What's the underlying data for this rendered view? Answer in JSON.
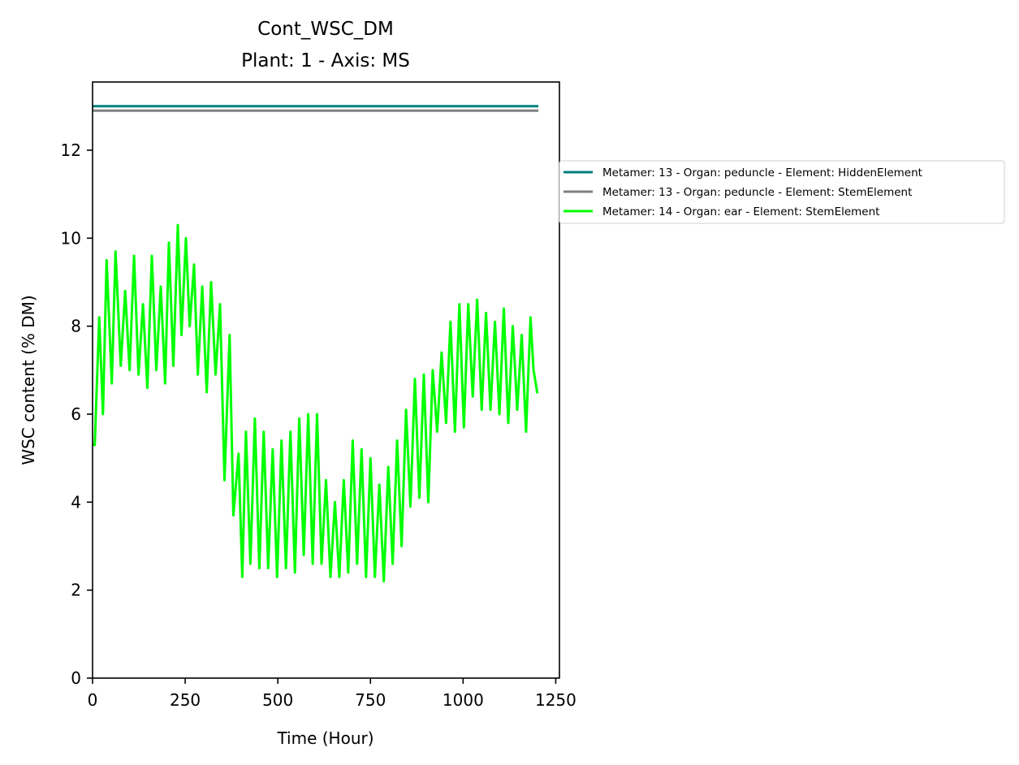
{
  "chart_data": {
    "type": "line",
    "title": "Cont_WSC_DM",
    "subtitle": "Plant: 1 - Axis: MS",
    "xlabel": "Time (Hour)",
    "ylabel": "WSC content (% DM)",
    "xlim": [
      0,
      1260
    ],
    "ylim": [
      0,
      13.55
    ],
    "xticks": [
      0,
      250,
      500,
      750,
      1000,
      1250
    ],
    "yticks": [
      0,
      2,
      4,
      6,
      8,
      10,
      12
    ],
    "xtick_labels": [
      "0",
      "250",
      "500",
      "750",
      "1000",
      "1250"
    ],
    "ytick_labels": [
      "0",
      "2",
      "4",
      "6",
      "8",
      "10",
      "12"
    ],
    "grid": false,
    "legend_position": "outside right, top",
    "series": [
      {
        "name": "Metamer: 13 - Organ: peduncle - Element: HiddenElement",
        "color": "#008080",
        "x": [
          0,
          1200
        ],
        "y": [
          13.0,
          13.0
        ]
      },
      {
        "name": "Metamer: 13 - Organ: peduncle - Element: StemElement",
        "color": "#808080",
        "x": [
          0,
          1200
        ],
        "y": [
          12.9,
          12.9
        ]
      },
      {
        "name": "Metamer: 14 - Organ: ear - Element: StemElement",
        "color": "#00ff00",
        "x": [
          0,
          6,
          18,
          28,
          38,
          52,
          62,
          76,
          88,
          100,
          112,
          124,
          136,
          148,
          160,
          172,
          184,
          196,
          206,
          218,
          230,
          240,
          252,
          262,
          274,
          284,
          296,
          308,
          320,
          332,
          344,
          356,
          370,
          380,
          394,
          404,
          414,
          426,
          438,
          450,
          462,
          474,
          486,
          498,
          510,
          522,
          534,
          546,
          558,
          570,
          582,
          594,
          606,
          618,
          630,
          642,
          654,
          666,
          678,
          690,
          702,
          714,
          726,
          738,
          750,
          762,
          774,
          786,
          798,
          810,
          822,
          834,
          846,
          858,
          870,
          882,
          894,
          906,
          918,
          930,
          942,
          954,
          966,
          978,
          990,
          1002,
          1014,
          1026,
          1038,
          1050,
          1062,
          1074,
          1086,
          1098,
          1110,
          1122,
          1134,
          1146,
          1158,
          1170,
          1182,
          1190,
          1200
        ],
        "y": [
          5.3,
          5.3,
          8.2,
          6.0,
          9.5,
          6.7,
          9.7,
          7.1,
          8.8,
          7.0,
          9.6,
          6.9,
          8.5,
          6.6,
          9.6,
          7.0,
          8.9,
          6.7,
          9.9,
          7.1,
          10.3,
          7.8,
          10.0,
          8.0,
          9.4,
          6.9,
          8.9,
          6.5,
          9.0,
          6.9,
          8.5,
          4.5,
          7.8,
          3.7,
          5.1,
          2.3,
          5.6,
          2.6,
          5.9,
          2.5,
          5.6,
          2.5,
          5.2,
          2.3,
          5.4,
          2.5,
          5.6,
          2.4,
          5.9,
          2.8,
          6.0,
          2.6,
          6.0,
          2.6,
          4.5,
          2.3,
          4.0,
          2.3,
          4.5,
          2.4,
          5.4,
          2.6,
          5.2,
          2.3,
          5.0,
          2.3,
          4.4,
          2.2,
          4.8,
          2.6,
          5.4,
          3.0,
          6.1,
          3.9,
          6.8,
          4.1,
          6.9,
          4.0,
          7.0,
          5.6,
          7.4,
          5.8,
          8.1,
          5.6,
          8.5,
          5.7,
          8.5,
          6.4,
          8.6,
          6.1,
          8.3,
          6.1,
          8.1,
          6.0,
          8.4,
          5.8,
          8.0,
          6.1,
          7.8,
          5.6,
          8.2,
          7.0,
          6.5
        ]
      }
    ]
  }
}
